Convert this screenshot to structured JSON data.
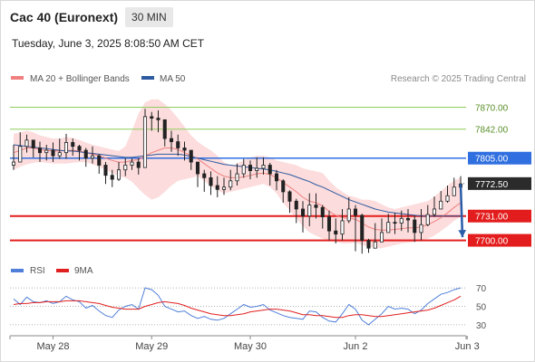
{
  "header": {
    "instrument": "Cac 40 (Euronext)",
    "timeframe": "30 MIN",
    "datetime": "Tuesday, June 3, 2025 8:08:50 AM CET"
  },
  "legend_main": [
    {
      "label": "MA 20 + Bollinger Bands",
      "color": "#f08080"
    },
    {
      "label": "MA 50",
      "color": "#2d5aa0"
    }
  ],
  "credit": "Research © 2025 Trading Central",
  "legend_rsi": [
    {
      "label": "RSI",
      "color": "#4f7fd8"
    },
    {
      "label": "9MA",
      "color": "#e02020"
    }
  ],
  "colors": {
    "resistance_blue": "#2f6fe0",
    "support_red": "#e31d1d",
    "green_level": "#8fce5c",
    "current_price": "#2b2b2b",
    "bollinger_fill": "#fbd0d0",
    "arrow": "#2a5ca8",
    "candle": "#222222"
  },
  "chart_data": {
    "type": "candlestick",
    "ylim": [
      7681,
      7896
    ],
    "x_tick_labels": [
      {
        "label": "May 28",
        "index": 6
      },
      {
        "label": "May 29",
        "index": 21
      },
      {
        "label": "May 30",
        "index": 36
      },
      {
        "label": "Jun 2",
        "index": 52
      },
      {
        "label": "Jun 3",
        "index": 69
      }
    ],
    "levels": [
      {
        "label": "7870.00",
        "value": 7870,
        "kind": "green"
      },
      {
        "label": "7842.00",
        "value": 7842,
        "kind": "green"
      },
      {
        "label": "7805.00",
        "value": 7805,
        "kind": "resistance"
      },
      {
        "label": "7772.50",
        "value": 7772.5,
        "kind": "current"
      },
      {
        "label": "7731.00",
        "value": 7731,
        "kind": "support"
      },
      {
        "label": "7700.00",
        "value": 7700,
        "kind": "support"
      }
    ],
    "projection": {
      "from_index": 68,
      "from_value": 7772,
      "to_index": 73,
      "to_value": 7704,
      "direction": "down"
    },
    "close": [
      7800,
      7820,
      7828,
      7818,
      7812,
      7815,
      7808,
      7812,
      7825,
      7820,
      7815,
      7805,
      7808,
      7796,
      7783,
      7778,
      7790,
      7796,
      7800,
      7793,
      7858,
      7856,
      7854,
      7830,
      7826,
      7818,
      7815,
      7800,
      7785,
      7780,
      7770,
      7765,
      7768,
      7776,
      7785,
      7796,
      7789,
      7792,
      7796,
      7785,
      7776,
      7762,
      7750,
      7740,
      7731,
      7745,
      7742,
      7730,
      7712,
      7708,
      7725,
      7740,
      7732,
      7700,
      7690,
      7698,
      7710,
      7723,
      7722,
      7728,
      7726,
      7710,
      7720,
      7733,
      7740,
      7750,
      7757,
      7768,
      7772
    ],
    "high": [
      7822,
      7838,
      7835,
      7828,
      7826,
      7822,
      7825,
      7830,
      7836,
      7830,
      7822,
      7818,
      7820,
      7810,
      7800,
      7790,
      7800,
      7805,
      7805,
      7805,
      7868,
      7864,
      7866,
      7848,
      7840,
      7835,
      7826,
      7815,
      7798,
      7790,
      7788,
      7782,
      7780,
      7790,
      7798,
      7804,
      7802,
      7806,
      7806,
      7799,
      7790,
      7778,
      7764,
      7753,
      7750,
      7760,
      7760,
      7745,
      7738,
      7728,
      7740,
      7755,
      7745,
      7734,
      7702,
      7722,
      7728,
      7734,
      7735,
      7738,
      7740,
      7732,
      7740,
      7745,
      7756,
      7763,
      7770,
      7780,
      7782
    ],
    "low": [
      7790,
      7800,
      7812,
      7806,
      7800,
      7802,
      7800,
      7804,
      7804,
      7808,
      7802,
      7794,
      7798,
      7785,
      7772,
      7768,
      7776,
      7782,
      7790,
      7784,
      7826,
      7840,
      7838,
      7820,
      7813,
      7808,
      7802,
      7790,
      7768,
      7762,
      7758,
      7755,
      7758,
      7764,
      7770,
      7780,
      7778,
      7780,
      7784,
      7770,
      7764,
      7748,
      7735,
      7722,
      7710,
      7718,
      7728,
      7715,
      7700,
      7696,
      7700,
      7722,
      7686,
      7683,
      7684,
      7690,
      7699,
      7713,
      7708,
      7712,
      7710,
      7698,
      7700,
      7718,
      7730,
      7740,
      7748,
      7757,
      7762
    ],
    "ma20": [
      7812,
      7815,
      7818,
      7818,
      7816,
      7815,
      7814,
      7814,
      7815,
      7815,
      7814,
      7812,
      7810,
      7808,
      7805,
      7802,
      7800,
      7800,
      7802,
      7803,
      7808,
      7812,
      7815,
      7818,
      7818,
      7816,
      7812,
      7808,
      7804,
      7798,
      7792,
      7786,
      7782,
      7780,
      7780,
      7781,
      7783,
      7785,
      7786,
      7784,
      7780,
      7774,
      7768,
      7762,
      7755,
      7750,
      7748,
      7744,
      7737,
      7732,
      7729,
      7728,
      7727,
      7722,
      7717,
      7714,
      7713,
      7713,
      7714,
      7715,
      7716,
      7716,
      7717,
      7720,
      7724,
      7729,
      7735,
      7742,
      7748
    ],
    "bb_upper": [
      7836,
      7838,
      7840,
      7838,
      7834,
      7832,
      7830,
      7830,
      7832,
      7831,
      7828,
      7825,
      7822,
      7820,
      7818,
      7816,
      7814,
      7820,
      7840,
      7862,
      7876,
      7880,
      7880,
      7874,
      7866,
      7856,
      7845,
      7834,
      7826,
      7820,
      7815,
      7808,
      7800,
      7795,
      7798,
      7802,
      7806,
      7808,
      7808,
      7806,
      7802,
      7800,
      7798,
      7796,
      7792,
      7790,
      7788,
      7786,
      7776,
      7768,
      7762,
      7757,
      7755,
      7752,
      7752,
      7750,
      7746,
      7742,
      7740,
      7742,
      7744,
      7746,
      7748,
      7750,
      7756,
      7763,
      7770,
      7776,
      7780
    ],
    "bb_lower": [
      7790,
      7794,
      7797,
      7799,
      7800,
      7799,
      7798,
      7798,
      7798,
      7799,
      7800,
      7800,
      7797,
      7794,
      7790,
      7786,
      7782,
      7780,
      7775,
      7766,
      7758,
      7752,
      7755,
      7762,
      7770,
      7776,
      7778,
      7780,
      7782,
      7776,
      7769,
      7764,
      7760,
      7762,
      7764,
      7766,
      7768,
      7770,
      7772,
      7768,
      7760,
      7748,
      7738,
      7728,
      7718,
      7710,
      7706,
      7702,
      7700,
      7698,
      7696,
      7696,
      7697,
      7694,
      7692,
      7690,
      7690,
      7692,
      7694,
      7696,
      7697,
      7698,
      7700,
      7702,
      7706,
      7712,
      7718,
      7725,
      7730
    ],
    "ma50": [
      7822,
      7821,
      7820,
      7819,
      7818,
      7817,
      7816,
      7815,
      7814,
      7814,
      7813,
      7812,
      7811,
      7810,
      7809,
      7808,
      7807,
      7806,
      7806,
      7807,
      7808,
      7809,
      7810,
      7810,
      7810,
      7810,
      7809,
      7807,
      7805,
      7803,
      7801,
      7799,
      7797,
      7796,
      7795,
      7794,
      7793,
      7792,
      7791,
      7790,
      7788,
      7786,
      7784,
      7781,
      7778,
      7775,
      7771,
      7768,
      7764,
      7760,
      7756,
      7752,
      7749,
      7746,
      7743,
      7740,
      7738,
      7736,
      7735,
      7734,
      7733,
      7732,
      7731,
      7731,
      7731,
      7731,
      7731,
      7731,
      7731
    ],
    "rsi": {
      "ticks": [
        70,
        50,
        30
      ],
      "ylim": [
        25,
        75
      ],
      "rsi": [
        58,
        52,
        60,
        55,
        54,
        56,
        53,
        55,
        61,
        57,
        55,
        48,
        51,
        45,
        40,
        38,
        46,
        50,
        52,
        47,
        70,
        68,
        62,
        50,
        47,
        44,
        45,
        40,
        37,
        39,
        36,
        35,
        37,
        42,
        47,
        52,
        49,
        50,
        52,
        46,
        43,
        40,
        38,
        37,
        36,
        45,
        44,
        38,
        34,
        33,
        42,
        52,
        47,
        35,
        30,
        36,
        42,
        50,
        47,
        48,
        47,
        42,
        46,
        53,
        58,
        63,
        65,
        68,
        70
      ],
      "ma9": [
        52,
        53,
        53,
        54,
        54,
        55,
        55,
        55,
        56,
        56,
        56,
        55,
        54,
        53,
        51,
        49,
        48,
        47,
        47,
        47,
        50,
        52,
        54,
        55,
        54,
        53,
        51,
        48,
        46,
        44,
        42,
        41,
        40,
        40,
        41,
        42,
        44,
        45,
        46,
        47,
        47,
        46,
        45,
        43,
        41,
        41,
        40,
        40,
        39,
        38,
        38,
        40,
        41,
        41,
        40,
        39,
        39,
        40,
        41,
        42,
        43,
        44,
        45,
        46,
        48,
        51,
        54,
        57,
        61
      ]
    }
  }
}
